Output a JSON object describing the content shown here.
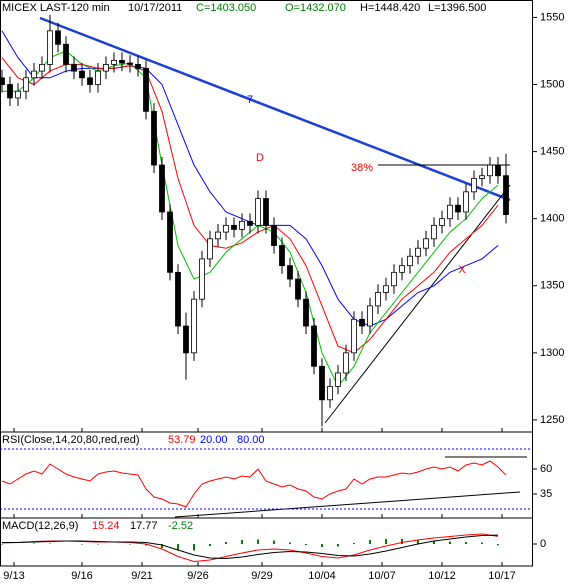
{
  "chart_data": [
    {
      "type": "candlestick",
      "title": "MICEX LAST-120 min",
      "date": "10/17/2011",
      "stats": [
        {
          "text": "C=1403.050",
          "color": "#008000"
        },
        {
          "text": "O=1432.070",
          "color": "#008000"
        },
        {
          "text": "H=1448.420",
          "color": "#000000"
        },
        {
          "text": "L=1396.500",
          "color": "#000000"
        }
      ],
      "xlim": [
        0,
        133
      ],
      "xticks": [
        {
          "value": 3,
          "label": "9/13"
        },
        {
          "value": 20,
          "label": "9/16"
        },
        {
          "value": 35,
          "label": "9/21"
        },
        {
          "value": 49,
          "label": "9/26"
        },
        {
          "value": 65,
          "label": "9/29"
        },
        {
          "value": 80,
          "label": "10/04"
        },
        {
          "value": 95,
          "label": "10/07"
        },
        {
          "value": 110,
          "label": "10/12"
        },
        {
          "value": 125,
          "label": "10/17"
        }
      ],
      "ylim": [
        1241,
        1563
      ],
      "yticks": [
        1250,
        1300,
        1350,
        1400,
        1450,
        1500,
        1550
      ],
      "x": [
        0,
        2,
        4,
        6,
        8,
        10,
        12,
        14,
        16,
        18,
        20,
        22,
        24,
        26,
        28,
        30,
        32,
        34,
        36,
        38,
        40,
        42,
        44,
        46,
        48,
        50,
        52,
        54,
        56,
        58,
        60,
        62,
        64,
        66,
        68,
        70,
        72,
        74,
        76,
        78,
        80,
        82,
        84,
        86,
        88,
        90,
        92,
        94,
        96,
        98,
        100,
        102,
        104,
        106,
        108,
        110,
        112,
        114,
        116,
        118,
        120,
        122,
        124,
        126
      ],
      "open": [
        1505,
        1500,
        1490,
        1495,
        1505,
        1510,
        1515,
        1540,
        1530,
        1515,
        1510,
        1505,
        1500,
        1510,
        1515,
        1518,
        1516,
        1515,
        1512,
        1480,
        1440,
        1405,
        1360,
        1320,
        1300,
        1340,
        1370,
        1385,
        1390,
        1395,
        1392,
        1398,
        1395,
        1415,
        1395,
        1380,
        1365,
        1355,
        1340,
        1320,
        1290,
        1265,
        1275,
        1285,
        1300,
        1325,
        1320,
        1335,
        1345,
        1350,
        1360,
        1365,
        1372,
        1378,
        1385,
        1395,
        1400,
        1410,
        1405,
        1420,
        1430,
        1432,
        1440,
        1432.07
      ],
      "high": [
        1511,
        1506,
        1501,
        1511,
        1516,
        1521,
        1552,
        1546,
        1536,
        1521,
        1516,
        1511,
        1516,
        1521,
        1524,
        1524,
        1522,
        1521,
        1518,
        1486,
        1446,
        1411,
        1366,
        1330,
        1346,
        1376,
        1391,
        1396,
        1401,
        1401,
        1404,
        1404,
        1421,
        1421,
        1401,
        1386,
        1371,
        1361,
        1346,
        1326,
        1296,
        1281,
        1291,
        1306,
        1331,
        1331,
        1341,
        1351,
        1356,
        1366,
        1371,
        1378,
        1384,
        1391,
        1401,
        1406,
        1416,
        1416,
        1426,
        1436,
        1438,
        1446,
        1446,
        1448.42
      ],
      "low": [
        1494,
        1484,
        1484,
        1489,
        1499,
        1504,
        1509,
        1524,
        1509,
        1504,
        1499,
        1494,
        1494,
        1504,
        1509,
        1510,
        1509,
        1506,
        1474,
        1434,
        1399,
        1354,
        1314,
        1280,
        1294,
        1334,
        1364,
        1379,
        1384,
        1386,
        1386,
        1389,
        1389,
        1389,
        1374,
        1359,
        1349,
        1334,
        1314,
        1284,
        1245,
        1259,
        1269,
        1279,
        1294,
        1314,
        1314,
        1329,
        1339,
        1344,
        1354,
        1359,
        1366,
        1372,
        1379,
        1389,
        1394,
        1399,
        1399,
        1414,
        1424,
        1426,
        1426,
        1396.5
      ],
      "close": [
        1500,
        1490,
        1495,
        1505,
        1510,
        1515,
        1540,
        1530,
        1515,
        1510,
        1505,
        1500,
        1510,
        1515,
        1518,
        1516,
        1515,
        1512,
        1480,
        1440,
        1405,
        1360,
        1320,
        1300,
        1340,
        1370,
        1385,
        1390,
        1395,
        1392,
        1398,
        1395,
        1415,
        1395,
        1380,
        1365,
        1355,
        1340,
        1320,
        1290,
        1265,
        1275,
        1285,
        1300,
        1325,
        1320,
        1335,
        1345,
        1350,
        1360,
        1365,
        1372,
        1378,
        1385,
        1395,
        1400,
        1410,
        1405,
        1420,
        1430,
        1432,
        1440,
        1432,
        1403.05
      ],
      "line_x": [
        0,
        4,
        8,
        12,
        16,
        20,
        24,
        28,
        32,
        36,
        40,
        44,
        48,
        52,
        56,
        60,
        64,
        68,
        72,
        76,
        80,
        84,
        88,
        92,
        96,
        100,
        104,
        108,
        112,
        116,
        120,
        124
      ],
      "lines": [
        {
          "color": "#0000ff",
          "values": [
            1540,
            1520,
            1505,
            1505,
            1510,
            1512,
            1512,
            1512,
            1514,
            1512,
            1500,
            1470,
            1440,
            1420,
            1405,
            1400,
            1395,
            1395,
            1395,
            1385,
            1365,
            1340,
            1325,
            1320,
            1325,
            1335,
            1345,
            1350,
            1360,
            1365,
            1370,
            1380
          ]
        },
        {
          "color": "#ff0000",
          "values": [
            1520,
            1505,
            1500,
            1510,
            1515,
            1515,
            1512,
            1512,
            1514,
            1510,
            1480,
            1430,
            1395,
            1380,
            1378,
            1382,
            1390,
            1395,
            1385,
            1365,
            1335,
            1305,
            1300,
            1310,
            1325,
            1340,
            1350,
            1360,
            1375,
            1385,
            1395,
            1410
          ]
        },
        {
          "color": "#00c000",
          "values": [
            1495,
            1495,
            1505,
            1520,
            1525,
            1515,
            1510,
            1514,
            1516,
            1505,
            1440,
            1380,
            1355,
            1360,
            1375,
            1385,
            1395,
            1390,
            1375,
            1345,
            1300,
            1275,
            1290,
            1315,
            1330,
            1345,
            1360,
            1375,
            1390,
            1400,
            1415,
            1425
          ]
        }
      ],
      "annotations": [
        {
          "text": "7",
          "color": "#0000ff"
        },
        {
          "text": "D",
          "color": "#ff0000"
        },
        {
          "text": "38%",
          "color": "#ff0000"
        },
        {
          "text": "X",
          "color": "#ff0000"
        }
      ]
    },
    {
      "type": "line",
      "title": "RSI(Close,14,20,80,red,red)",
      "legend": [
        {
          "text": "53.79",
          "color": "#ff0000"
        },
        {
          "text": "20.00",
          "color": "#0000ff"
        },
        {
          "text": "80.00",
          "color": "#0000ff"
        }
      ],
      "ylim": [
        11,
        97
      ],
      "yticks": [
        35,
        60
      ],
      "levels": [
        20,
        80
      ],
      "level_color": "#0000ff",
      "x": [
        0,
        2,
        4,
        6,
        8,
        10,
        12,
        14,
        16,
        18,
        20,
        22,
        24,
        26,
        28,
        30,
        32,
        34,
        36,
        38,
        40,
        42,
        44,
        46,
        48,
        50,
        52,
        54,
        56,
        58,
        60,
        62,
        64,
        66,
        68,
        70,
        72,
        74,
        76,
        78,
        80,
        82,
        84,
        86,
        88,
        90,
        92,
        94,
        96,
        98,
        100,
        102,
        104,
        106,
        108,
        110,
        112,
        114,
        116,
        118,
        120,
        122,
        124,
        126
      ],
      "series": [
        {
          "color": "#ff0000",
          "values": [
            48,
            45,
            50,
            55,
            58,
            55,
            65,
            60,
            55,
            52,
            50,
            48,
            55,
            57,
            58,
            56,
            55,
            54,
            40,
            32,
            30,
            26,
            25,
            22,
            35,
            45,
            48,
            50,
            52,
            50,
            53,
            52,
            60,
            48,
            45,
            42,
            44,
            40,
            38,
            32,
            30,
            35,
            38,
            40,
            50,
            45,
            50,
            52,
            52,
            54,
            56,
            55,
            57,
            60,
            62,
            60,
            62,
            58,
            64,
            66,
            64,
            68,
            62,
            53.79
          ]
        }
      ]
    },
    {
      "type": "macd",
      "title": "MACD(12,26,9)",
      "legend": [
        {
          "text": "15.24",
          "color": "#ff0000"
        },
        {
          "text": "17.77",
          "color": "#000000"
        },
        {
          "text": "-2.52",
          "color": "#008000"
        }
      ],
      "ylim": [
        -44,
        52
      ],
      "yticks": [
        0
      ],
      "x": [
        0,
        4,
        8,
        12,
        16,
        20,
        24,
        28,
        32,
        36,
        40,
        44,
        48,
        52,
        56,
        60,
        64,
        68,
        72,
        76,
        80,
        84,
        88,
        92,
        96,
        100,
        104,
        108,
        112,
        116,
        120,
        124
      ],
      "series": [
        {
          "color": "#ff0000",
          "values": [
            2,
            3,
            5,
            6,
            6,
            5,
            4,
            4,
            3,
            0,
            -10,
            -25,
            -35,
            -32,
            -25,
            -18,
            -12,
            -10,
            -12,
            -18,
            -25,
            -28,
            -22,
            -12,
            -4,
            3,
            8,
            12,
            15,
            18,
            20,
            15.24
          ]
        },
        {
          "color": "#000000",
          "values": [
            3,
            3,
            4,
            5,
            6,
            6,
            5,
            4,
            4,
            3,
            -2,
            -12,
            -22,
            -28,
            -29,
            -26,
            -21,
            -17,
            -15,
            -16,
            -19,
            -23,
            -24,
            -20,
            -14,
            -7,
            0,
            6,
            10,
            14,
            17,
            17.77
          ]
        }
      ],
      "histogram": {
        "color": "#008000",
        "values": [
          -1,
          0,
          1,
          1,
          0,
          -1,
          -1,
          0,
          -1,
          -3,
          -8,
          -13,
          -13,
          -4,
          4,
          8,
          9,
          7,
          3,
          -2,
          -6,
          -5,
          2,
          8,
          10,
          10,
          8,
          6,
          5,
          4,
          3,
          -2.52
        ]
      }
    }
  ]
}
